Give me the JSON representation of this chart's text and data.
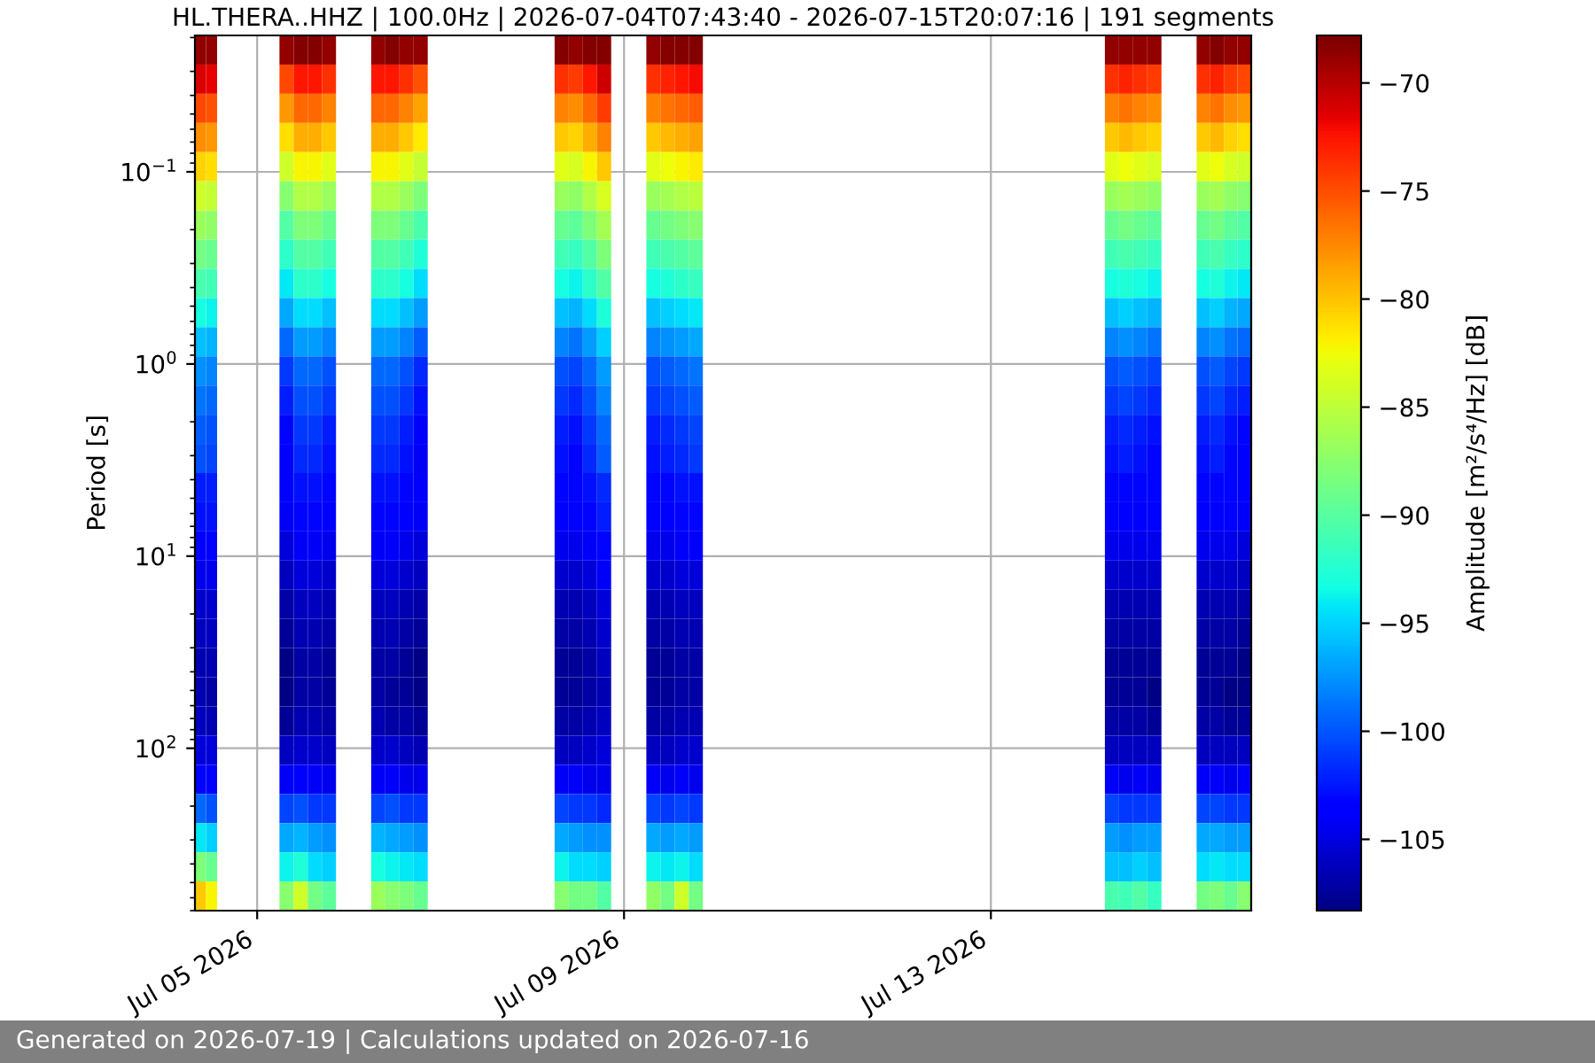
{
  "chart_data": {
    "type": "heatmap",
    "title": "HL.THERA..HHZ | 100.0Hz | 2026-07-04T07:43:40 - 2026-07-15T20:07:16 | 191 segments",
    "ylabel": "Period [s]",
    "clabel": "Amplitude [m²/s⁴/Hz] [dB]",
    "annotations": [
      "Generated on 2026-07-19 | Calculations updated on 2026-07-16"
    ],
    "x": [
      "2026-07-04T09:10",
      "2026-07-04T12:04",
      "2026-07-04T14:58",
      "2026-07-05T03:59",
      "2026-07-05T07:41",
      "2026-07-05T11:23",
      "2026-07-05T15:05",
      "2026-07-05T18:47",
      "2026-07-05T22:29",
      "2026-07-06T03:59",
      "2026-07-06T07:41",
      "2026-07-06T11:23",
      "2026-07-06T15:05",
      "2026-07-06T18:47",
      "2026-07-06T22:29",
      "2026-07-08T03:59",
      "2026-07-08T07:41",
      "2026-07-08T11:23",
      "2026-07-08T15:05",
      "2026-07-08T18:47",
      "2026-07-08T22:29",
      "2026-07-09T03:59",
      "2026-07-09T07:41",
      "2026-07-09T11:23",
      "2026-07-09T15:05",
      "2026-07-09T18:47",
      "2026-07-09T22:29",
      "2026-07-14T03:59",
      "2026-07-14T07:41",
      "2026-07-14T11:23",
      "2026-07-14T15:05",
      "2026-07-14T18:47",
      "2026-07-14T22:29",
      "2026-07-15T04:03",
      "2026-07-15T07:37",
      "2026-07-15T11:11",
      "2026-07-15T14:45",
      "2026-07-15T18:19"
    ],
    "cells": [
      [
        -68.5,
        -68.5,
        null,
        null,
        -68.5,
        -68,
        -68,
        -68.5,
        null,
        null,
        -68.5,
        -68,
        -68.5,
        -68.5,
        null,
        null,
        -68,
        -68.5,
        -68,
        -68,
        null,
        null,
        -68.5,
        -68,
        -68,
        -68,
        null,
        null,
        -68.5,
        -68.5,
        -68.5,
        -68.5,
        null,
        null,
        -68.5,
        -68,
        -68.5,
        -68.5
      ],
      [
        -71,
        -71.5,
        null,
        null,
        -74.5,
        -72.5,
        -72.5,
        -73.5,
        null,
        null,
        -72.5,
        -72.5,
        -73.5,
        -75,
        null,
        null,
        -73.5,
        -74,
        -72.5,
        -70.5,
        null,
        null,
        -73.5,
        -73,
        -72.5,
        -72,
        null,
        null,
        -73.5,
        -73,
        -73.5,
        -74,
        null,
        null,
        -73.5,
        -73,
        -74,
        -74.5
      ],
      [
        -74.5,
        -75,
        null,
        null,
        -78,
        -76,
        -76,
        -77,
        null,
        null,
        -76,
        -76,
        -77,
        -78.5,
        null,
        null,
        -77,
        -77.5,
        -76,
        -74,
        null,
        null,
        -77,
        -76.5,
        -76,
        -75.5,
        null,
        null,
        -77,
        -76.5,
        -77,
        -77.5,
        null,
        null,
        -77,
        -76.5,
        -77.5,
        -78
      ],
      [
        -77.5,
        -78,
        null,
        null,
        -81,
        -79,
        -79,
        -80,
        null,
        null,
        -79,
        -79,
        -80,
        -81.5,
        null,
        null,
        -80,
        -80.5,
        -79,
        -77,
        null,
        null,
        -80,
        -79.5,
        -79,
        -78.5,
        null,
        null,
        -80,
        -79.5,
        -80,
        -80.5,
        null,
        null,
        -80,
        -79.5,
        -80.5,
        -81
      ],
      [
        -80.5,
        -81,
        null,
        null,
        -84,
        -82,
        -82,
        -83,
        null,
        null,
        -82,
        -82,
        -83,
        -84.5,
        null,
        null,
        -83,
        -83.5,
        -82,
        -80,
        null,
        null,
        -83,
        -82.5,
        -82,
        -81.5,
        null,
        null,
        -83,
        -82.5,
        -83,
        -83.5,
        null,
        null,
        -83,
        -82.5,
        -83.5,
        -84
      ],
      [
        -84,
        -84.5,
        null,
        null,
        -87.5,
        -85.5,
        -85.5,
        -86.5,
        null,
        null,
        -85.5,
        -85.5,
        -86.5,
        -88,
        null,
        null,
        -86.5,
        -87,
        -85.5,
        -83.5,
        null,
        null,
        -86.5,
        -86,
        -85.5,
        -85,
        null,
        null,
        -86.5,
        -86,
        -86.5,
        -87,
        null,
        null,
        -86.5,
        -86,
        -87,
        -87.5
      ],
      [
        -86.5,
        -87,
        null,
        null,
        -90,
        -88,
        -88,
        -89,
        null,
        null,
        -88,
        -88,
        -89,
        -90.5,
        null,
        null,
        -89,
        -89.5,
        -88,
        -86,
        null,
        null,
        -89,
        -88.5,
        -88,
        -87.5,
        null,
        null,
        -89,
        -88.5,
        -89,
        -89.5,
        null,
        null,
        -89,
        -88.5,
        -89.5,
        -90
      ],
      [
        -88.5,
        -89,
        null,
        null,
        -92,
        -90,
        -90,
        -91,
        null,
        null,
        -90,
        -90,
        -91,
        -92.5,
        null,
        null,
        -91,
        -91.5,
        -90,
        -88,
        null,
        null,
        -91,
        -90.5,
        -90,
        -89.5,
        null,
        null,
        -91,
        -90.5,
        -91,
        -91.5,
        null,
        null,
        -91,
        -90.5,
        -91.5,
        -92
      ],
      [
        -90.5,
        -91,
        null,
        null,
        -94,
        -92,
        -92,
        -93,
        null,
        null,
        -92,
        -92,
        -93,
        -94.5,
        null,
        null,
        -93,
        -93.5,
        -92,
        -90,
        null,
        null,
        -93,
        -92.5,
        -92,
        -91.5,
        null,
        null,
        -93,
        -92.5,
        -93,
        -93.5,
        null,
        null,
        -93,
        -92.5,
        -93.5,
        -94
      ],
      [
        -93,
        -93.5,
        null,
        null,
        -96.5,
        -94.5,
        -94.5,
        -95.5,
        null,
        null,
        -94.5,
        -94.5,
        -95.5,
        -97,
        null,
        null,
        -95.5,
        -96,
        -94.5,
        -92.5,
        null,
        null,
        -95.5,
        -95,
        -94.5,
        -94,
        null,
        null,
        -95.5,
        -95,
        -95.5,
        -96,
        null,
        null,
        -95.5,
        -95,
        -96,
        -96.5
      ],
      [
        -95.5,
        -96,
        null,
        null,
        -99,
        -97,
        -97,
        -98,
        null,
        null,
        -97,
        -97,
        -98,
        -99.5,
        null,
        null,
        -98,
        -98.5,
        -97,
        -95,
        null,
        null,
        -98,
        -97.5,
        -97,
        -96.5,
        null,
        null,
        -98,
        -97.5,
        -98,
        -98.5,
        null,
        null,
        -98,
        -97.5,
        -98.5,
        -99
      ],
      [
        -97.5,
        -98,
        null,
        null,
        -101,
        -99,
        -99,
        -100,
        null,
        null,
        -99,
        -99,
        -100,
        -101.5,
        null,
        null,
        -100,
        -100.5,
        -99,
        -97,
        null,
        null,
        -100,
        -99.5,
        -99,
        -98.5,
        null,
        null,
        -100,
        -99.5,
        -100,
        -100.5,
        null,
        null,
        -100,
        -99.5,
        -100.5,
        -101
      ],
      [
        -98.5,
        -99,
        null,
        null,
        -102,
        -100,
        -100,
        -101,
        null,
        null,
        -100,
        -100,
        -101,
        -102.5,
        null,
        null,
        -101,
        -101.5,
        -100,
        -98,
        null,
        null,
        -101,
        -100.5,
        -100,
        -99.5,
        null,
        null,
        -101,
        -100.5,
        -101,
        -101.5,
        null,
        null,
        -101,
        -100.5,
        -101.5,
        -102
      ],
      [
        -99.5,
        -100,
        null,
        null,
        -103,
        -101,
        -101,
        -102,
        null,
        null,
        -101,
        -101,
        -102,
        -103.5,
        null,
        null,
        -102,
        -102.5,
        -101,
        -99,
        null,
        null,
        -102,
        -101.5,
        -101,
        -100.5,
        null,
        null,
        -102,
        -101.5,
        -102,
        -102.5,
        null,
        null,
        -102,
        -101.5,
        -102.5,
        -103
      ],
      [
        -100,
        -100.5,
        null,
        null,
        -103.5,
        -101.5,
        -101.5,
        -102.5,
        null,
        null,
        -101.5,
        -101.5,
        -102.5,
        -104,
        null,
        null,
        -102.5,
        -103,
        -101.5,
        -99.5,
        null,
        null,
        -102.5,
        -102,
        -101.5,
        -101,
        null,
        null,
        -102.5,
        -102,
        -102.5,
        -103,
        null,
        null,
        -102.5,
        -102,
        -103,
        -103.5
      ],
      [
        -102,
        -102,
        null,
        null,
        -103.5,
        -102.5,
        -102.5,
        -103,
        null,
        null,
        -102.5,
        -102.5,
        -103,
        -103.5,
        null,
        null,
        -103,
        -103,
        -102.5,
        -101.5,
        null,
        null,
        -103,
        -103,
        -102.5,
        -102.5,
        null,
        null,
        -103,
        -103,
        -103,
        -103,
        null,
        null,
        -103,
        -103,
        -103,
        -103.5
      ],
      [
        -102.5,
        -102.5,
        null,
        null,
        -104,
        -103,
        -103,
        -103.5,
        null,
        null,
        -103,
        -103,
        -103.5,
        -104,
        null,
        null,
        -103.5,
        -103.5,
        -103,
        -102,
        null,
        null,
        -103.5,
        -103.5,
        -103,
        -103,
        null,
        null,
        -103.5,
        -103.5,
        -103.5,
        -103.5,
        null,
        null,
        -103.5,
        -103.5,
        -103.5,
        -104
      ],
      [
        -103.5,
        -103.5,
        null,
        null,
        -105,
        -104,
        -104,
        -104.5,
        null,
        null,
        -104,
        -104,
        -104.5,
        -105,
        null,
        null,
        -104.5,
        -104.5,
        -104,
        -103,
        null,
        null,
        -104.5,
        -104.5,
        -104,
        -104,
        null,
        null,
        -104.5,
        -104.5,
        -104.5,
        -104.5,
        null,
        null,
        -104.5,
        -104.5,
        -104.5,
        -105
      ],
      [
        -104.5,
        -104.5,
        null,
        null,
        -106,
        -105,
        -105,
        -105.5,
        null,
        null,
        -105,
        -105,
        -105.5,
        -106,
        null,
        null,
        -105.5,
        -105.5,
        -105,
        -104,
        null,
        null,
        -105.5,
        -105.5,
        -105,
        -105,
        null,
        null,
        -105.5,
        -105.5,
        -105.5,
        -105.5,
        null,
        null,
        -105.5,
        -105.5,
        -105.5,
        -106
      ],
      [
        -105.5,
        -105.5,
        null,
        null,
        -107,
        -106,
        -106,
        -106.5,
        null,
        null,
        -106,
        -106,
        -106.5,
        -107,
        null,
        null,
        -106.5,
        -106.5,
        -106,
        -105,
        null,
        null,
        -106.5,
        -106.5,
        -106,
        -106,
        null,
        null,
        -106.5,
        -106.5,
        -106.5,
        -106.5,
        null,
        null,
        -106.5,
        -106.5,
        -106.5,
        -107
      ],
      [
        -106,
        -106,
        null,
        null,
        -107.5,
        -106.5,
        -106.5,
        -107,
        null,
        null,
        -106.5,
        -106.5,
        -107,
        -107.5,
        null,
        null,
        -107,
        -107,
        -106.5,
        -105.5,
        null,
        null,
        -107,
        -107,
        -106.5,
        -106.5,
        null,
        null,
        -107,
        -107,
        -107,
        -107,
        null,
        null,
        -107,
        -107,
        -107,
        -107.5
      ],
      [
        -106.5,
        -106.5,
        null,
        null,
        -108,
        -107,
        -107,
        -107.5,
        null,
        null,
        -107,
        -107,
        -107.5,
        -108,
        null,
        null,
        -107.5,
        -107.5,
        -107,
        -106,
        null,
        null,
        -107.5,
        -107.5,
        -107,
        -107,
        null,
        null,
        -107.5,
        -107.5,
        -107.5,
        -107.5,
        null,
        null,
        -107.5,
        -107.5,
        -107.5,
        -108
      ],
      [
        -106.5,
        -107,
        null,
        null,
        -108,
        -107,
        -107,
        -107.5,
        null,
        null,
        -107,
        -107.5,
        -107.5,
        -108,
        null,
        null,
        -107.5,
        -107.5,
        -107,
        -106.5,
        null,
        null,
        -107.5,
        -107.5,
        -107,
        -107,
        null,
        null,
        -107.5,
        -107.5,
        -107.5,
        -108,
        null,
        null,
        -107.5,
        -107.5,
        -108,
        -108
      ],
      [
        -106,
        -106.5,
        null,
        null,
        -107.5,
        -106.5,
        -106.5,
        -107,
        null,
        null,
        -106.5,
        -107,
        -107,
        -107.5,
        null,
        null,
        -107,
        -107,
        -106.5,
        -106,
        null,
        null,
        -107,
        -107,
        -106.5,
        -106.5,
        null,
        null,
        -107,
        -107,
        -107,
        -107.5,
        null,
        null,
        -107,
        -107,
        -107.5,
        -107.5
      ],
      [
        -105,
        -105,
        null,
        null,
        -106,
        -105.5,
        -105.5,
        -106,
        null,
        null,
        -105.5,
        -105.5,
        -106,
        -106.5,
        null,
        null,
        -106,
        -106,
        -105.5,
        -105,
        null,
        null,
        -106,
        -106,
        -105.5,
        -105.5,
        null,
        null,
        -106,
        -106,
        -106,
        -106,
        null,
        null,
        -106,
        -106,
        -106,
        -106
      ],
      [
        -103,
        -103.5,
        null,
        null,
        -104,
        -103.5,
        -104,
        -104.5,
        null,
        null,
        -104,
        -104,
        -104.5,
        -104.5,
        null,
        null,
        -104,
        -104,
        -104.5,
        -104.5,
        null,
        null,
        -104,
        -104.5,
        -104,
        -104.5,
        null,
        null,
        -104,
        -104.5,
        -104,
        -104.5,
        null,
        null,
        -104,
        -104,
        -104.5,
        -104
      ],
      [
        -99,
        -100,
        null,
        null,
        -100.5,
        -100,
        -101,
        -101,
        null,
        null,
        -100.5,
        -100,
        -101,
        -101,
        null,
        null,
        -100.5,
        -101,
        -101,
        -101.5,
        null,
        null,
        -100.5,
        -101,
        -100.5,
        -101,
        null,
        null,
        -100.5,
        -101,
        -101,
        -101,
        null,
        null,
        -100.5,
        -100.5,
        -101,
        -101
      ],
      [
        -94,
        -95,
        null,
        null,
        -96.5,
        -96,
        -97,
        -97.5,
        null,
        null,
        -96,
        -96.5,
        -97,
        -97.5,
        null,
        null,
        -96.5,
        -97,
        -97.5,
        -97.5,
        null,
        null,
        -96.5,
        -97,
        -96.5,
        -97,
        null,
        null,
        -97,
        -97.5,
        -97,
        -97,
        null,
        null,
        -96.5,
        -96.5,
        -97,
        -97
      ],
      [
        -88,
        -89,
        null,
        null,
        -93.5,
        -92.5,
        -94.5,
        -95,
        null,
        null,
        -93,
        -93.5,
        -94,
        -94.5,
        null,
        null,
        -93.5,
        -94.5,
        -94.5,
        -95,
        null,
        null,
        -93.5,
        -94,
        -93.5,
        -94.5,
        null,
        null,
        -95.5,
        -95.5,
        -95,
        -95.5,
        null,
        null,
        -94.5,
        -94,
        -94.5,
        -94.5
      ],
      [
        -80,
        -82,
        null,
        null,
        -87.5,
        -84,
        -88.5,
        -89.5,
        null,
        null,
        -86.5,
        -87.5,
        -88,
        -89,
        null,
        null,
        -87.5,
        -88.5,
        -88.5,
        -90,
        null,
        null,
        -87,
        -88.5,
        -84,
        -88.5,
        null,
        null,
        -90.5,
        -91,
        -90,
        -91.5,
        null,
        null,
        -88.5,
        -88,
        -89,
        -87.5
      ]
    ],
    "clim": [
      -108.3,
      -67.8
    ],
    "cticks": [
      -70,
      -75,
      -80,
      -85,
      -90,
      -95,
      -100,
      -105
    ],
    "xlim": [
      "2026-07-04T07:43",
      "2026-07-15T20:07"
    ],
    "xticks": [
      {
        "value": "2026-07-05",
        "label": "Jul 05 2026"
      },
      {
        "value": "2026-07-09",
        "label": "Jul 09 2026"
      },
      {
        "value": "2026-07-13",
        "label": "Jul 13 2026"
      }
    ],
    "ylim": [
      700,
      0.0195
    ],
    "yticks": [
      {
        "value": 0.1,
        "label": "10$^{−1}$"
      },
      {
        "value": 1,
        "label": "10$^{0}$"
      },
      {
        "value": 10,
        "label": "10$^{1}$"
      },
      {
        "value": 100,
        "label": "10$^{2}$"
      }
    ],
    "log": "y",
    "grid": true
  }
}
